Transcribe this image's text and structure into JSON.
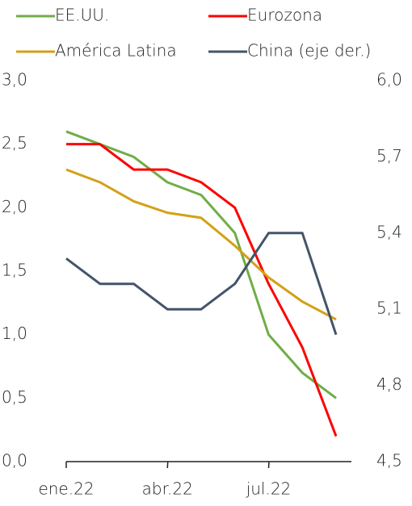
{
  "chart_data": {
    "type": "line",
    "categories": [
      "ene.22",
      null,
      null,
      "abr.22",
      null,
      null,
      "jul.22",
      null,
      null
    ],
    "series": [
      {
        "name": "EE.UU.",
        "color": "#70ad47",
        "values": [
          2.6,
          2.5,
          2.4,
          2.2,
          2.1,
          1.8,
          1.0,
          0.7,
          0.5
        ]
      },
      {
        "name": "Eurozona",
        "color": "#ff0000",
        "values": [
          2.5,
          2.5,
          2.3,
          2.3,
          2.2,
          2.0,
          1.4,
          0.9,
          0.2
        ]
      },
      {
        "name": "América Latina",
        "color": "#d4a017",
        "values": [
          2.3,
          2.2,
          2.05,
          1.96,
          1.92,
          1.7,
          1.45,
          1.26,
          1.12
        ]
      },
      {
        "name": "China (eje der.)",
        "color": "#44546a",
        "axis": "y2",
        "values": [
          5.3,
          5.2,
          5.2,
          5.1,
          5.1,
          5.2,
          5.4,
          5.4,
          5.0
        ]
      }
    ],
    "ylim": [
      0,
      3
    ],
    "yticks": [
      {
        "value": 0,
        "label": "0,0"
      },
      {
        "value": 0.5,
        "label": "0,5"
      },
      {
        "value": 1,
        "label": "1,0"
      },
      {
        "value": 1.5,
        "label": "1,5"
      },
      {
        "value": 2,
        "label": "2,0"
      },
      {
        "value": 2.5,
        "label": "2,5"
      },
      {
        "value": 3,
        "label": "3,0"
      }
    ],
    "y2lim": [
      4.5,
      6
    ],
    "y2ticks": [
      {
        "value": 4.5,
        "label": "4,5"
      },
      {
        "value": 4.8,
        "label": "4,8"
      },
      {
        "value": 5.1,
        "label": "5,1"
      },
      {
        "value": 5.4,
        "label": "5,4"
      },
      {
        "value": 5.7,
        "label": "5,7"
      },
      {
        "value": 6,
        "label": "6,0"
      }
    ]
  }
}
